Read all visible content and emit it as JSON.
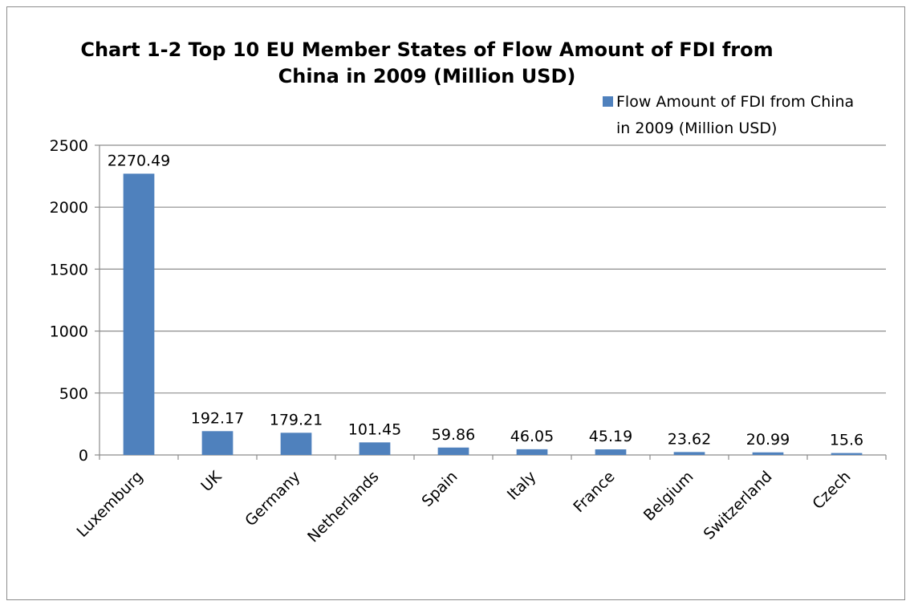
{
  "chart_data": {
    "type": "bar",
    "title": "Chart 1-2 Top 10 EU Member States of Flow Amount of FDI from China in 2009 (Million USD)",
    "title_lines": [
      "Chart 1-2 Top 10 EU Member States of Flow Amount of FDI from",
      "China in 2009 (Million USD)"
    ],
    "categories": [
      "Luxemburg",
      "UK",
      "Germany",
      "Netherlands",
      "Spain",
      "Italy",
      "France",
      "Belgium",
      "Switzerland",
      "Czech"
    ],
    "series": [
      {
        "name": "Flow Amount of FDI from China in 2009 (Million USD)",
        "legend_lines": [
          "Flow Amount of FDI from China",
          "in 2009 (Million USD)"
        ],
        "values": [
          2270.49,
          192.17,
          179.21,
          101.45,
          59.86,
          46.05,
          45.19,
          23.62,
          20.99,
          15.6
        ],
        "labels": [
          "2270.49",
          "192.17",
          "179.21",
          "101.45",
          "59.86",
          "46.05",
          "45.19",
          "23.62",
          "20.99",
          "15.6"
        ],
        "color": "#4F81BD"
      }
    ],
    "xlabel": "",
    "ylabel": "",
    "ylim": [
      0,
      2500
    ],
    "yticks": [
      0,
      500,
      1000,
      1500,
      2000,
      2500
    ],
    "grid": true,
    "legend_position": "top-right"
  }
}
